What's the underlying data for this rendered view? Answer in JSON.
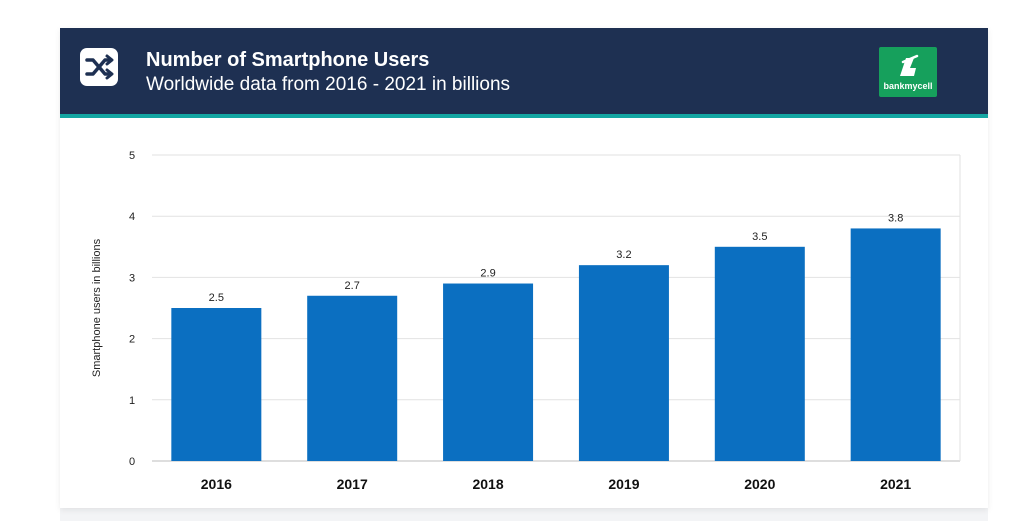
{
  "header": {
    "title": "Number of Smartphone Users",
    "subtitle": "Worldwide data from 2016 - 2021 in billions",
    "logo_text": "bankmycell",
    "icon": "shuffle-icon"
  },
  "colors": {
    "header_bg": "#1e3052",
    "accent": "#14a6a2",
    "bar": "#0b6fc1",
    "logo_bg": "#16a05c"
  },
  "chart_data": {
    "type": "bar",
    "title": "Number of Smartphone Users",
    "subtitle": "Worldwide data from 2016 - 2021 in billions",
    "categories": [
      "2016",
      "2017",
      "2018",
      "2019",
      "2020",
      "2021"
    ],
    "values": [
      2.5,
      2.7,
      2.9,
      3.2,
      3.5,
      3.8
    ],
    "value_labels": [
      "2.5",
      "2.7",
      "2.9",
      "3.2",
      "3.5",
      "3.8"
    ],
    "xlabel": "",
    "ylabel": "Smartphone users in billions",
    "ylim": [
      0,
      5
    ],
    "yticks": [
      "0",
      "1",
      "2",
      "3",
      "4",
      "5"
    ],
    "grid": true,
    "legend": "none"
  }
}
